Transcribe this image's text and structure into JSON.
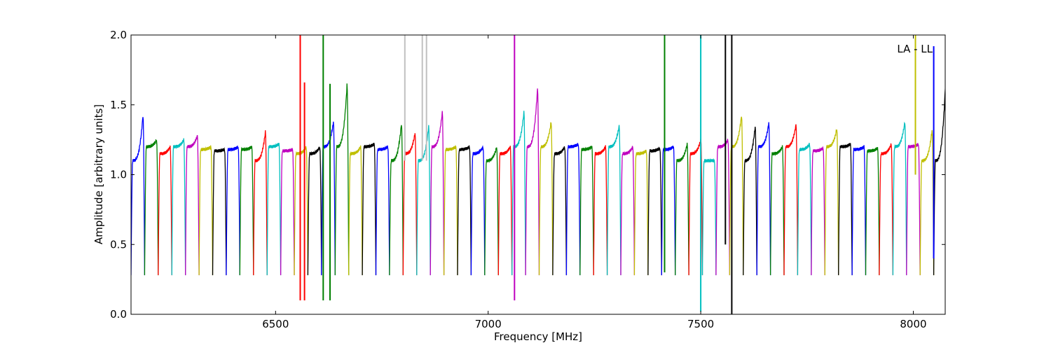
{
  "chart_data": {
    "type": "line",
    "title": "",
    "annotation": "LA - LL",
    "xlabel": "Frequency [MHz]",
    "ylabel": "Amplitude [arbitrary units]",
    "xlim": [
      6160,
      8075
    ],
    "ylim": [
      0,
      2.0
    ],
    "xticks": [
      6500,
      7000,
      7500,
      8000
    ],
    "yticks": [
      0.0,
      0.5,
      1.0,
      1.5,
      2.0
    ],
    "xtick_labels": [
      "6500",
      "7000",
      "7500",
      "8000"
    ],
    "ytick_labels": [
      "0.0",
      "0.5",
      "1.0",
      "1.5",
      "2.0"
    ],
    "grid": false,
    "channel_colors": [
      "#0000ff",
      "#008000",
      "#ff0000",
      "#00bfbf",
      "#bf00bf",
      "#bfbf00",
      "#000000"
    ],
    "background_color": "#c0c0c0",
    "channel_width_mhz": 32,
    "channel_step_mhz": 32,
    "series": [
      {
        "start": 6160,
        "level": 1.1,
        "peak": 1.43,
        "color": "#0000ff"
      },
      {
        "start": 6192,
        "level": 1.2,
        "peak": 1.25,
        "color": "#008000"
      },
      {
        "start": 6224,
        "level": 1.15,
        "peak": 1.2,
        "color": "#ff0000"
      },
      {
        "start": 6256,
        "level": 1.2,
        "peak": 1.25,
        "color": "#00bfbf"
      },
      {
        "start": 6288,
        "level": 1.2,
        "peak": 1.28,
        "color": "#bf00bf"
      },
      {
        "start": 6320,
        "level": 1.18,
        "peak": 1.2,
        "color": "#bfbf00"
      },
      {
        "start": 6352,
        "level": 1.17,
        "peak": 1.18,
        "color": "#000000"
      },
      {
        "start": 6384,
        "level": 1.18,
        "peak": 1.2,
        "color": "#0000ff"
      },
      {
        "start": 6416,
        "level": 1.18,
        "peak": 1.2,
        "color": "#008000"
      },
      {
        "start": 6448,
        "level": 1.1,
        "peak": 1.31,
        "color": "#ff0000"
      },
      {
        "start": 6480,
        "level": 1.2,
        "peak": 1.22,
        "color": "#00bfbf"
      },
      {
        "start": 6512,
        "level": 1.17,
        "peak": 1.18,
        "color": "#bf00bf"
      },
      {
        "start": 6544,
        "level": 1.15,
        "peak": 1.2,
        "color": "#bfbf00"
      },
      {
        "start": 6576,
        "level": 1.15,
        "peak": 1.2,
        "color": "#000000"
      },
      {
        "start": 6608,
        "level": 1.2,
        "peak": 1.38,
        "color": "#0000ff"
      },
      {
        "start": 6640,
        "level": 1.2,
        "peak": 1.65,
        "color": "#008000"
      },
      {
        "start": 6672,
        "level": 1.15,
        "peak": 1.2,
        "color": "#bfbf00"
      },
      {
        "start": 6704,
        "level": 1.2,
        "peak": 1.22,
        "color": "#000000"
      },
      {
        "start": 6736,
        "level": 1.18,
        "peak": 1.2,
        "color": "#0000ff"
      },
      {
        "start": 6768,
        "level": 1.1,
        "peak": 1.37,
        "color": "#008000"
      },
      {
        "start": 6800,
        "level": 1.15,
        "peak": 1.3,
        "color": "#ff0000"
      },
      {
        "start": 6832,
        "level": 1.1,
        "peak": 1.35,
        "color": "#00bfbf"
      },
      {
        "start": 6864,
        "level": 1.2,
        "peak": 1.45,
        "color": "#bf00bf"
      },
      {
        "start": 6896,
        "level": 1.18,
        "peak": 1.2,
        "color": "#bfbf00"
      },
      {
        "start": 6928,
        "level": 1.18,
        "peak": 1.2,
        "color": "#000000"
      },
      {
        "start": 6960,
        "level": 1.15,
        "peak": 1.2,
        "color": "#0000ff"
      },
      {
        "start": 6992,
        "level": 1.1,
        "peak": 1.2,
        "color": "#008000"
      },
      {
        "start": 7024,
        "level": 1.15,
        "peak": 1.2,
        "color": "#ff0000"
      },
      {
        "start": 7056,
        "level": 1.2,
        "peak": 1.45,
        "color": "#00bfbf"
      },
      {
        "start": 7088,
        "level": 1.2,
        "peak": 1.62,
        "color": "#bf00bf"
      },
      {
        "start": 7120,
        "level": 1.2,
        "peak": 1.38,
        "color": "#bfbf00"
      },
      {
        "start": 7152,
        "level": 1.15,
        "peak": 1.2,
        "color": "#000000"
      },
      {
        "start": 7184,
        "level": 1.2,
        "peak": 1.22,
        "color": "#0000ff"
      },
      {
        "start": 7216,
        "level": 1.18,
        "peak": 1.2,
        "color": "#008000"
      },
      {
        "start": 7248,
        "level": 1.15,
        "peak": 1.2,
        "color": "#ff0000"
      },
      {
        "start": 7280,
        "level": 1.2,
        "peak": 1.35,
        "color": "#00bfbf"
      },
      {
        "start": 7312,
        "level": 1.15,
        "peak": 1.2,
        "color": "#bf00bf"
      },
      {
        "start": 7344,
        "level": 1.15,
        "peak": 1.17,
        "color": "#bfbf00"
      },
      {
        "start": 7376,
        "level": 1.17,
        "peak": 1.19,
        "color": "#000000"
      },
      {
        "start": 7408,
        "level": 1.18,
        "peak": 1.2,
        "color": "#0000ff"
      },
      {
        "start": 7440,
        "level": 1.1,
        "peak": 1.22,
        "color": "#008000"
      },
      {
        "start": 7472,
        "level": 1.15,
        "peak": 1.25,
        "color": "#ff0000"
      },
      {
        "start": 7504,
        "level": 1.1,
        "peak": 1.1,
        "color": "#00bfbf"
      },
      {
        "start": 7536,
        "level": 1.2,
        "peak": 1.25,
        "color": "#bf00bf"
      },
      {
        "start": 7568,
        "level": 1.2,
        "peak": 1.43,
        "color": "#bfbf00"
      },
      {
        "start": 7600,
        "level": 1.1,
        "peak": 1.35,
        "color": "#000000"
      },
      {
        "start": 7632,
        "level": 1.2,
        "peak": 1.37,
        "color": "#0000ff"
      },
      {
        "start": 7664,
        "level": 1.15,
        "peak": 1.2,
        "color": "#008000"
      },
      {
        "start": 7696,
        "level": 1.2,
        "peak": 1.36,
        "color": "#ff0000"
      },
      {
        "start": 7728,
        "level": 1.18,
        "peak": 1.22,
        "color": "#00bfbf"
      },
      {
        "start": 7760,
        "level": 1.17,
        "peak": 1.19,
        "color": "#bf00bf"
      },
      {
        "start": 7792,
        "level": 1.2,
        "peak": 1.33,
        "color": "#bfbf00"
      },
      {
        "start": 7824,
        "level": 1.2,
        "peak": 1.22,
        "color": "#000000"
      },
      {
        "start": 7856,
        "level": 1.18,
        "peak": 1.2,
        "color": "#0000ff"
      },
      {
        "start": 7888,
        "level": 1.17,
        "peak": 1.19,
        "color": "#008000"
      },
      {
        "start": 7920,
        "level": 1.15,
        "peak": 1.22,
        "color": "#ff0000"
      },
      {
        "start": 7952,
        "level": 1.2,
        "peak": 1.38,
        "color": "#00bfbf"
      },
      {
        "start": 7984,
        "level": 1.2,
        "peak": 1.22,
        "color": "#bf00bf"
      },
      {
        "start": 8016,
        "level": 1.1,
        "peak": 1.32,
        "color": "#bfbf00"
      },
      {
        "start": 8048,
        "level": 1.1,
        "peak": 1.69,
        "color": "#000000"
      }
    ],
    "spikes": [
      {
        "x": 6558,
        "ymin": 0.1,
        "ymax": 2.0,
        "color": "#ff0000"
      },
      {
        "x": 6568,
        "ymin": 0.1,
        "ymax": 1.66,
        "color": "#ff0000"
      },
      {
        "x": 6612,
        "ymin": 0.1,
        "ymax": 2.0,
        "color": "#008000"
      },
      {
        "x": 6628,
        "ymin": 0.1,
        "ymax": 1.65,
        "color": "#008000"
      },
      {
        "x": 6804,
        "ymin": 1.1,
        "ymax": 2.0,
        "color": "#c0c0c0"
      },
      {
        "x": 6845,
        "ymin": 1.1,
        "ymax": 2.0,
        "color": "#c0c0c0"
      },
      {
        "x": 6855,
        "ymin": 1.1,
        "ymax": 2.0,
        "color": "#c0c0c0"
      },
      {
        "x": 7062,
        "ymin": 0.1,
        "ymax": 2.0,
        "color": "#bf00bf"
      },
      {
        "x": 7415,
        "ymin": 0.3,
        "ymax": 2.0,
        "color": "#008000"
      },
      {
        "x": 7500,
        "ymin": 0.02,
        "ymax": 2.0,
        "color": "#00bfbf"
      },
      {
        "x": 7558,
        "ymin": 0.5,
        "ymax": 2.0,
        "color": "#000000"
      },
      {
        "x": 7573,
        "ymin": 0.0,
        "ymax": 2.0,
        "color": "#000000"
      },
      {
        "x": 8005,
        "ymin": 1.0,
        "ymax": 2.0,
        "color": "#bfbf00"
      },
      {
        "x": 8048,
        "ymin": 0.4,
        "ymax": 1.92,
        "color": "#0000ff"
      }
    ]
  }
}
